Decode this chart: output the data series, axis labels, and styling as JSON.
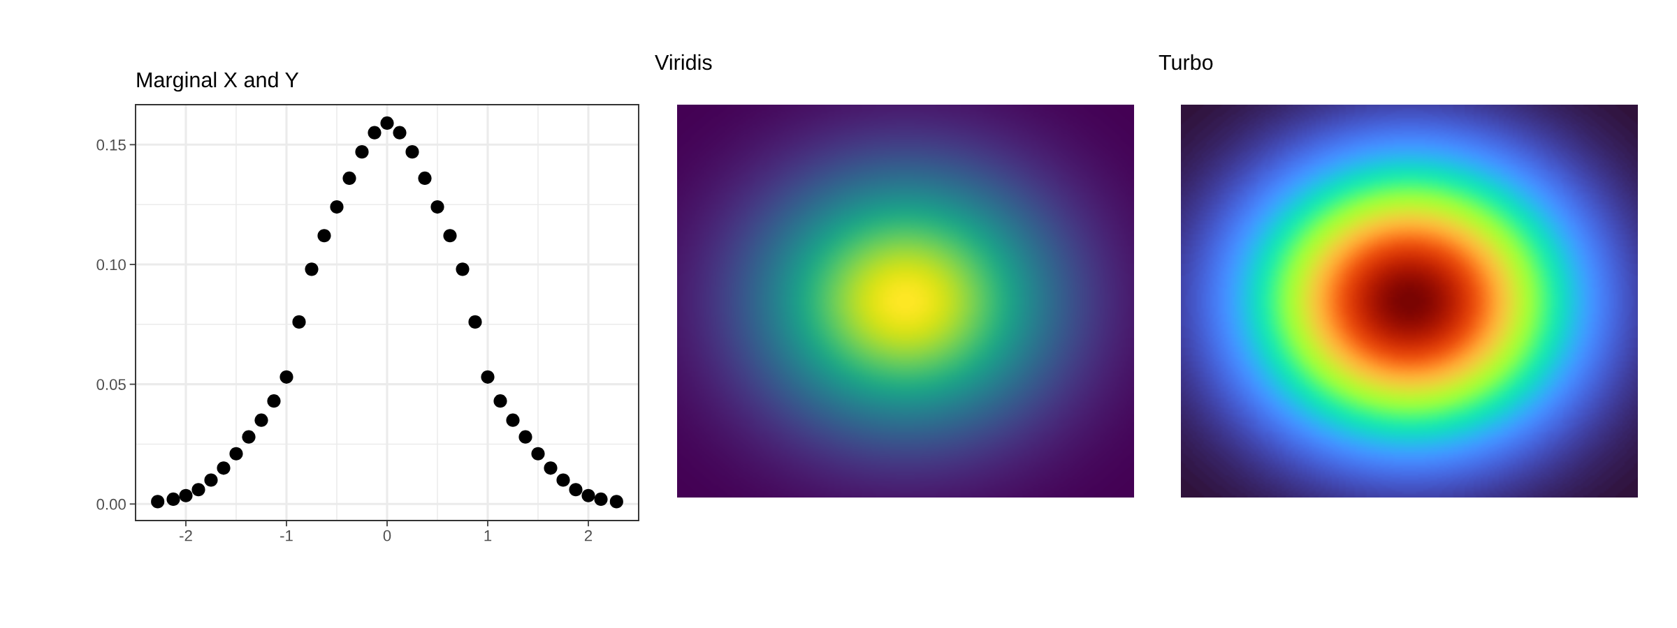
{
  "chart_data": [
    {
      "type": "scatter",
      "title": "Marginal X and Y",
      "color": "#000000",
      "marker": "circle",
      "grid": true,
      "x": [
        -2.28,
        -2.125,
        -2,
        -1.875,
        -1.75,
        -1.625,
        -1.5,
        -1.375,
        -1.25,
        -1.125,
        -1,
        -0.875,
        -0.75,
        -0.625,
        -0.5,
        -0.375,
        -0.25,
        -0.125,
        0,
        0.125,
        0.25,
        0.375,
        0.5,
        0.625,
        0.75,
        0.875,
        1,
        1.125,
        1.25,
        1.375,
        1.5,
        1.625,
        1.75,
        1.875,
        2,
        2.125,
        2.28
      ],
      "values": [
        0.001,
        0.002,
        0.0035,
        0.006,
        0.01,
        0.015,
        0.021,
        0.028,
        0.035,
        0.043,
        0.053,
        0.076,
        0.098,
        0.112,
        0.124,
        0.136,
        0.147,
        0.155,
        0.159,
        0.155,
        0.147,
        0.136,
        0.124,
        0.112,
        0.098,
        0.076,
        0.053,
        0.043,
        0.035,
        0.028,
        0.021,
        0.015,
        0.01,
        0.006,
        0.0035,
        0.002,
        0.001
      ],
      "xlim": [
        -2.5,
        2.5
      ],
      "ylim": [
        -0.0069,
        0.1667
      ],
      "xticks": [
        {
          "value": -2,
          "label": "-2"
        },
        {
          "value": -1,
          "label": "-1"
        },
        0,
        1,
        2
      ],
      "yticks": [
        {
          "value": 0,
          "label": "0.00"
        },
        0.05,
        {
          "value": 0.1,
          "label": "0.10"
        },
        0.15
      ]
    },
    {
      "type": "other",
      "title": "Viridis"
    },
    {
      "type": "other",
      "title": "Turbo"
    }
  ]
}
